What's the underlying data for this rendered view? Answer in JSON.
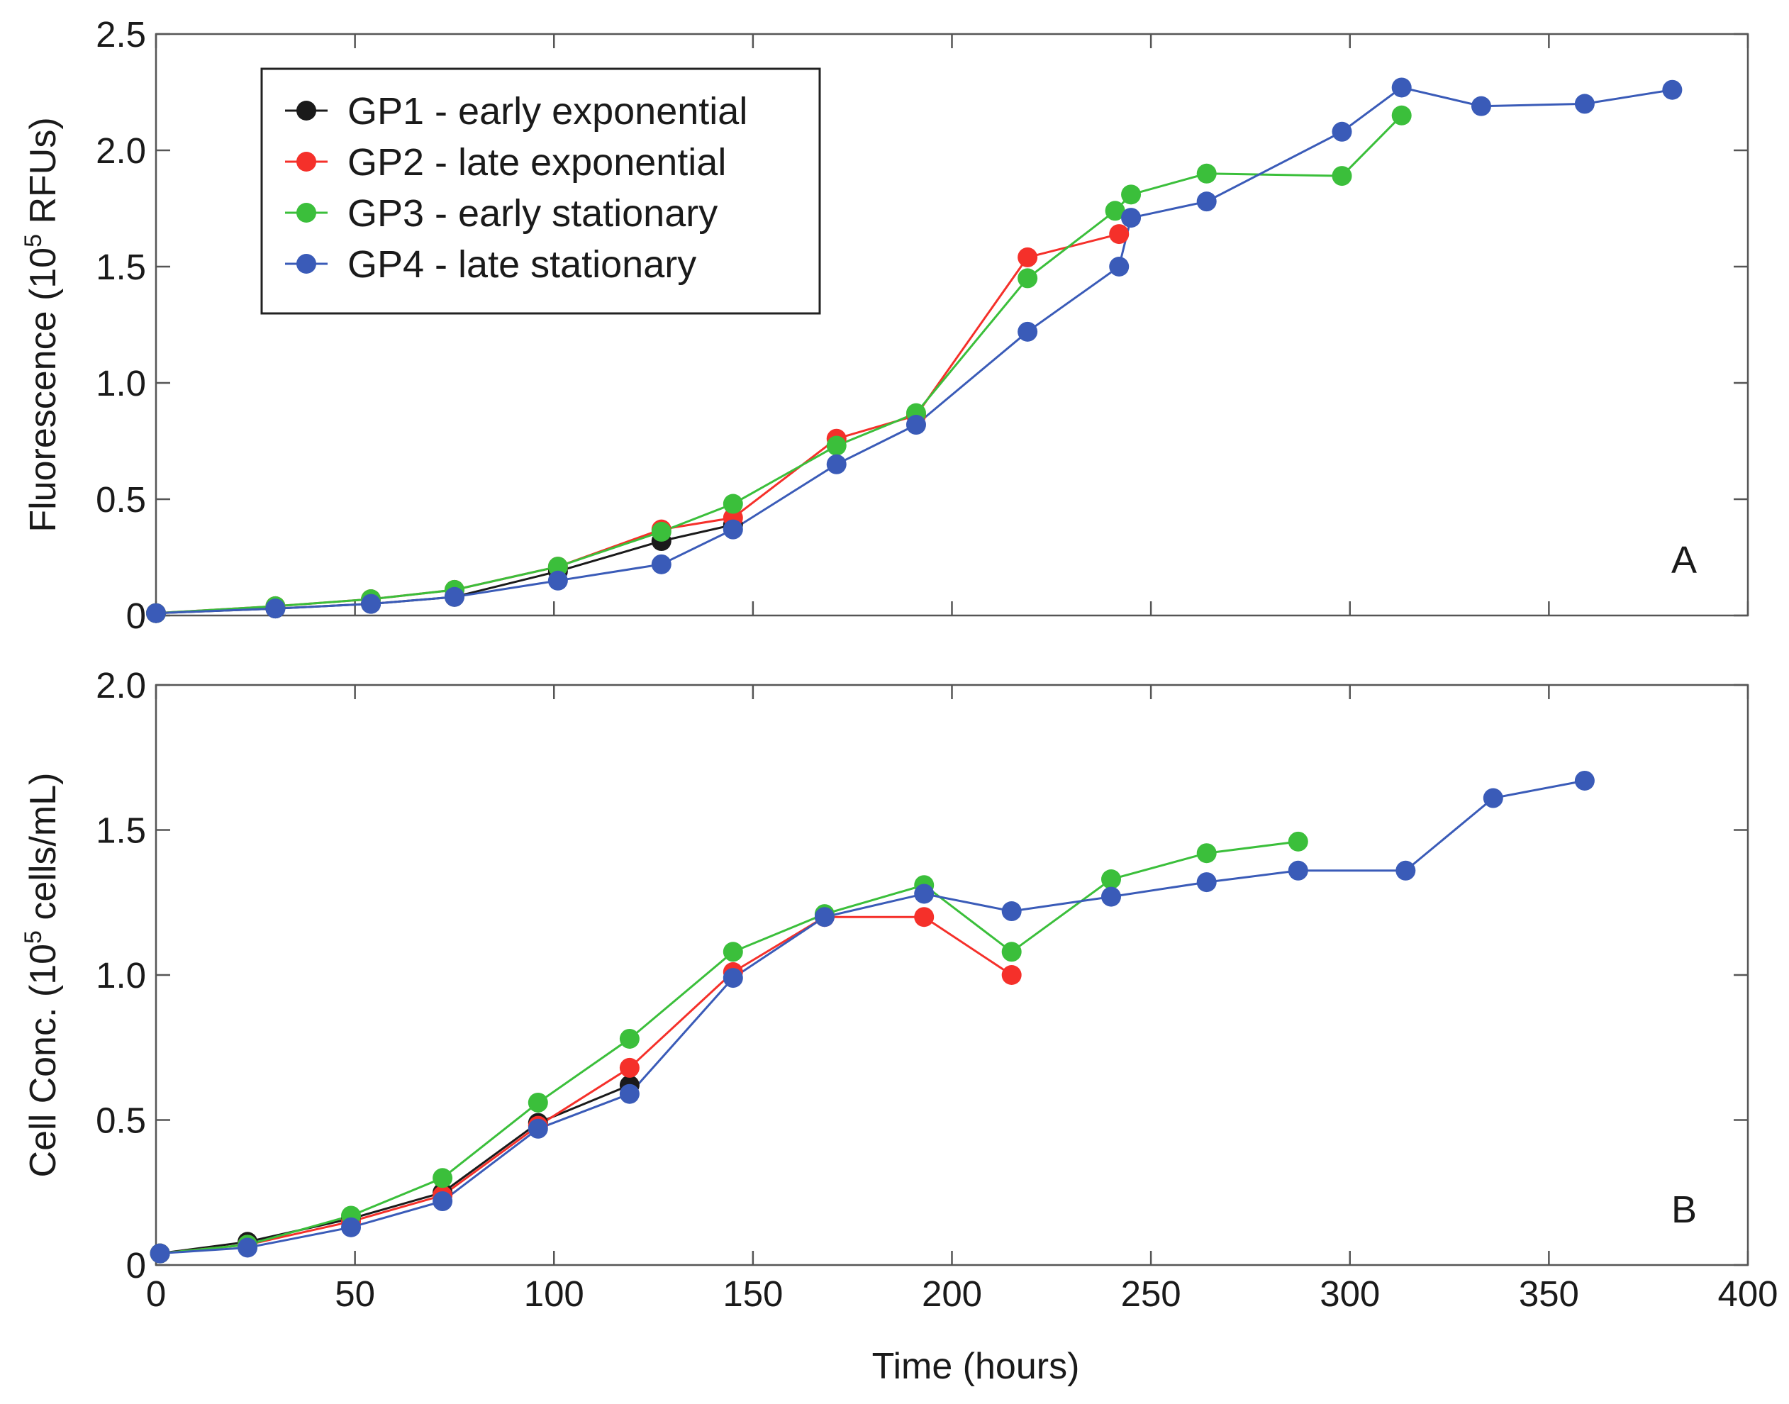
{
  "chart_data": [
    {
      "type": "line",
      "panel_label": "A",
      "ylabel_prefix": "Fluorescence (10",
      "ylabel_exp": "5",
      "ylabel_suffix": " RFUs)",
      "ylim": [
        0,
        2.5
      ],
      "yticks": [
        0,
        0.5,
        1.0,
        1.5,
        2.0,
        2.5
      ],
      "ytick_labels": [
        "0",
        "0.5",
        "1.0",
        "1.5",
        "2.0",
        "2.5"
      ],
      "xlim": [
        0,
        400
      ],
      "legend": "top-left",
      "series": [
        {
          "name": "GP1 - early exponential",
          "color": "#1a1a1a",
          "x": [
            0,
            30,
            54,
            75,
            101,
            127,
            145
          ],
          "y": [
            0.01,
            0.03,
            0.05,
            0.08,
            0.19,
            0.32,
            0.39
          ]
        },
        {
          "name": "GP2 - late exponential",
          "color": "#f5302a",
          "x": [
            0,
            30,
            54,
            75,
            101,
            127,
            145,
            171,
            191,
            219,
            242
          ],
          "y": [
            0.01,
            0.04,
            0.07,
            0.11,
            0.21,
            0.37,
            0.42,
            0.76,
            0.86,
            1.54,
            1.64
          ]
        },
        {
          "name": "GP3 - early stationary",
          "color": "#3bbf3b",
          "x": [
            0,
            30,
            54,
            75,
            101,
            127,
            145,
            171,
            191,
            219,
            241,
            245,
            264,
            298,
            313
          ],
          "y": [
            0.01,
            0.04,
            0.07,
            0.11,
            0.21,
            0.36,
            0.48,
            0.73,
            0.87,
            1.45,
            1.74,
            1.81,
            1.9,
            1.89,
            2.15
          ]
        },
        {
          "name": "GP4 - late stationary",
          "color": "#3a5bb8",
          "x": [
            0,
            30,
            54,
            75,
            101,
            127,
            145,
            171,
            191,
            219,
            242,
            245,
            264,
            298,
            313,
            333,
            359,
            381
          ],
          "y": [
            0.01,
            0.03,
            0.05,
            0.08,
            0.15,
            0.22,
            0.37,
            0.65,
            0.82,
            1.22,
            1.5,
            1.71,
            1.78,
            2.08,
            2.27,
            2.19,
            2.2,
            2.26
          ]
        }
      ]
    },
    {
      "type": "line",
      "panel_label": "B",
      "ylabel_prefix": "Cell Conc. (10",
      "ylabel_exp": "5",
      "ylabel_suffix": " cells/mL)",
      "xlabel": "Time (hours)",
      "xlim": [
        0,
        400
      ],
      "ylim": [
        0,
        2.0
      ],
      "xticks": [
        0,
        50,
        100,
        150,
        200,
        250,
        300,
        350,
        400
      ],
      "xtick_labels": [
        "0",
        "50",
        "100",
        "150",
        "200",
        "250",
        "300",
        "350",
        "400"
      ],
      "yticks": [
        0,
        0.5,
        1.0,
        1.5,
        2.0
      ],
      "ytick_labels": [
        "0",
        "0.5",
        "1.0",
        "1.5",
        "2.0"
      ],
      "series": [
        {
          "name": "GP1 - early exponential",
          "color": "#1a1a1a",
          "x": [
            1,
            23,
            49,
            72,
            96,
            119
          ],
          "y": [
            0.04,
            0.08,
            0.16,
            0.25,
            0.49,
            0.62
          ]
        },
        {
          "name": "GP2 - late exponential",
          "color": "#f5302a",
          "x": [
            1,
            23,
            49,
            72,
            96,
            119,
            145,
            168,
            193,
            215
          ],
          "y": [
            0.04,
            0.07,
            0.15,
            0.24,
            0.48,
            0.68,
            1.01,
            1.2,
            1.2,
            1.0
          ]
        },
        {
          "name": "GP3 - early stationary",
          "color": "#3bbf3b",
          "x": [
            1,
            23,
            49,
            72,
            96,
            119,
            145,
            168,
            193,
            215,
            240,
            264,
            287
          ],
          "y": [
            0.04,
            0.07,
            0.17,
            0.3,
            0.56,
            0.78,
            1.08,
            1.21,
            1.31,
            1.08,
            1.33,
            1.42,
            1.46
          ]
        },
        {
          "name": "GP4 - late stationary",
          "color": "#3a5bb8",
          "x": [
            1,
            23,
            49,
            72,
            96,
            119,
            145,
            168,
            193,
            215,
            240,
            264,
            287,
            314,
            336,
            359
          ],
          "y": [
            0.04,
            0.06,
            0.13,
            0.22,
            0.47,
            0.59,
            0.99,
            1.2,
            1.28,
            1.22,
            1.27,
            1.32,
            1.36,
            1.36,
            1.61,
            1.67
          ]
        }
      ]
    }
  ]
}
